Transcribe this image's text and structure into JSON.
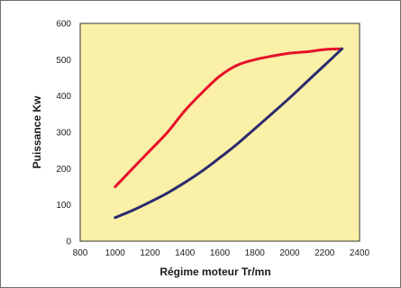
{
  "chart_data": {
    "type": "line",
    "title": "",
    "xlabel": "Régime moteur Tr/mn",
    "ylabel": "Puissance Kw",
    "xlim": [
      800,
      2400
    ],
    "ylim": [
      0,
      600
    ],
    "x_ticks": [
      800,
      1000,
      1200,
      1400,
      1600,
      1800,
      2000,
      2200,
      2400
    ],
    "y_ticks": [
      0,
      100,
      200,
      300,
      400,
      500,
      600
    ],
    "grid": false,
    "legend": "none",
    "plot_background": "#faf0a8",
    "series": [
      {
        "color": "#e8102a",
        "x": [
          1000,
          1100,
          1200,
          1300,
          1400,
          1500,
          1600,
          1700,
          1800,
          1900,
          2000,
          2100,
          2200,
          2300
        ],
        "y": [
          150,
          200,
          250,
          300,
          360,
          410,
          455,
          485,
          500,
          510,
          518,
          522,
          528,
          530
        ]
      },
      {
        "color": "#2b2a6e",
        "x": [
          1000,
          1100,
          1200,
          1300,
          1400,
          1500,
          1600,
          1700,
          1800,
          1900,
          2000,
          2100,
          2200,
          2300
        ],
        "y": [
          65,
          85,
          108,
          133,
          162,
          194,
          230,
          268,
          310,
          352,
          395,
          440,
          485,
          530
        ]
      }
    ]
  }
}
